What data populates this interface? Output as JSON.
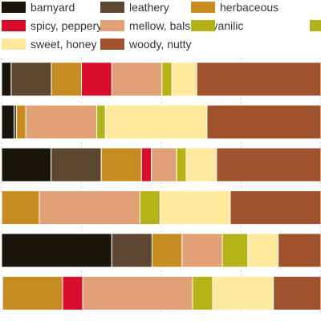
{
  "chart_data": {
    "type": "bar",
    "orientation": "horizontal",
    "stacked": true,
    "normalized": true,
    "title": "",
    "xlabel": "",
    "ylabel": "",
    "xlim": [
      0,
      100
    ],
    "grid": true,
    "legend_placement": "top",
    "categories": [
      "",
      "",
      "",
      "",
      "",
      ""
    ],
    "series": [
      {
        "name": "barnyard",
        "color": "#19150b",
        "values": [
          3.0,
          3.9,
          15.5,
          0.0,
          34.5,
          0.3
        ]
      },
      {
        "name": "leathery",
        "color": "#5e4730",
        "values": [
          12.6,
          0.8,
          15.7,
          0.0,
          12.6,
          0.0
        ]
      },
      {
        "name": "herbaceous",
        "color": "#c68c22",
        "values": [
          9.4,
          2.9,
          12.6,
          11.8,
          9.4,
          18.8
        ]
      },
      {
        "name": "spicy, peppery",
        "color": "#da0c2c",
        "values": [
          9.5,
          0.0,
          3.1,
          0.0,
          0.0,
          6.3
        ]
      },
      {
        "name": "mellow, balsam, vanilic",
        "color": "#e2a077",
        "values": [
          15.7,
          22.2,
          7.9,
          31.5,
          12.6,
          34.4
        ]
      },
      {
        "name": "",
        "color": "#b5b318",
        "values": [
          3.1,
          2.7,
          3.0,
          6.3,
          8.0,
          6.3
        ]
      },
      {
        "name": "sweet, honey floral",
        "color": "#fde89c",
        "values": [
          7.8,
          31.8,
          9.5,
          22.0,
          9.5,
          19.0
        ]
      },
      {
        "name": "woody, nutty",
        "color": "#a0522d",
        "values": [
          38.9,
          35.7,
          32.7,
          28.4,
          13.4,
          14.9
        ]
      }
    ]
  }
}
